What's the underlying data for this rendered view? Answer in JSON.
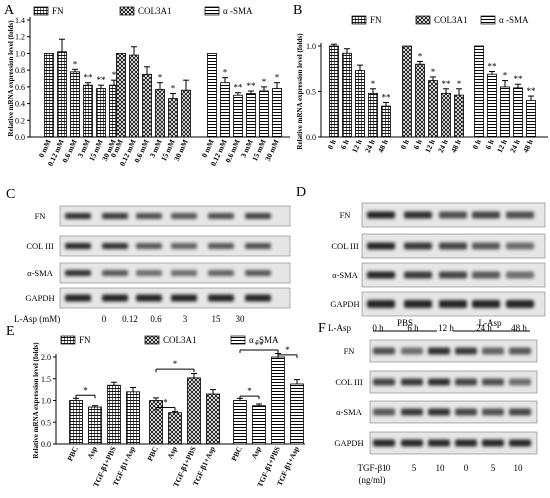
{
  "panel_labels": {
    "a": "A",
    "b": "B",
    "c": "C",
    "d": "D",
    "e": "E",
    "f": "F"
  },
  "chart_data": [
    {
      "panel": "A",
      "type": "bar",
      "ylabel": "Relative mRNA expression level (folds)",
      "ylim": [
        0,
        1.4
      ],
      "yticks": [
        "0.0",
        "0.2",
        "0.4",
        "0.6",
        "0.8",
        "1.0",
        "1.2",
        "1.4"
      ],
      "legend": [
        "FN",
        "COL3A1",
        "α -SMA"
      ],
      "groups": [
        {
          "series": "FN",
          "categories": [
            "0 mM",
            "0.12 mM",
            "0.6 mM",
            "3 mM",
            "15 mM",
            "30 mM"
          ],
          "values": [
            1.0,
            1.02,
            0.78,
            0.62,
            0.58,
            0.62
          ],
          "errors": [
            0,
            0.15,
            0.03,
            0.03,
            0.04,
            0.06
          ],
          "sig": [
            "",
            "",
            "*",
            "**",
            "**",
            "*"
          ]
        },
        {
          "series": "COL3A1",
          "categories": [
            "0 mM",
            "0.12 mM",
            "0.6 mM",
            "3 mM",
            "15 mM",
            "30 mM"
          ],
          "values": [
            1.0,
            0.98,
            0.75,
            0.57,
            0.46,
            0.56
          ],
          "errors": [
            0,
            0.1,
            0.09,
            0.08,
            0.06,
            0.12
          ],
          "sig": [
            "",
            "",
            "",
            "*",
            "*",
            ""
          ]
        },
        {
          "series": "α -SMA",
          "categories": [
            "0 mM",
            "0.12 mM",
            "0.6 mM",
            "3 mM",
            "15 mM",
            "30 mM"
          ],
          "values": [
            1.0,
            0.65,
            0.5,
            0.52,
            0.55,
            0.58
          ],
          "errors": [
            0,
            0.06,
            0.03,
            0.03,
            0.05,
            0.07
          ],
          "sig": [
            "",
            "*",
            "**",
            "**",
            "*",
            "*"
          ]
        }
      ]
    },
    {
      "panel": "B",
      "type": "bar",
      "ylabel": "Relative mRNA expression level (folds)",
      "ylim": [
        0,
        1.0
      ],
      "yticks": [
        "0.0",
        "0.5",
        "1.0"
      ],
      "legend": [
        "FN",
        "COL3A1",
        "α -SMA"
      ],
      "groups": [
        {
          "series": "FN",
          "categories": [
            "0 h",
            "6 h",
            "12 h",
            "24 h",
            "48 h"
          ],
          "values": [
            1.0,
            0.92,
            0.73,
            0.48,
            0.34
          ],
          "errors": [
            0.02,
            0.05,
            0.06,
            0.05,
            0.04
          ],
          "sig": [
            "",
            "",
            "",
            "*",
            "**"
          ]
        },
        {
          "series": "COL3A1",
          "categories": [
            "0 h",
            "6 h",
            "12 h",
            "24 h",
            "48 h"
          ],
          "values": [
            1.0,
            0.8,
            0.62,
            0.48,
            0.46
          ],
          "errors": [
            0,
            0.03,
            0.04,
            0.05,
            0.07
          ],
          "sig": [
            "",
            "*",
            "*",
            "**",
            "*"
          ]
        },
        {
          "series": "α -SMA",
          "categories": [
            "0 h",
            "6 h",
            "12 h",
            "24 h",
            "48 h"
          ],
          "values": [
            1.0,
            0.69,
            0.55,
            0.54,
            0.4
          ],
          "errors": [
            0,
            0.03,
            0.07,
            0.04,
            0.05
          ],
          "sig": [
            "",
            "**",
            "*",
            "**",
            "**"
          ]
        }
      ]
    },
    {
      "panel": "E",
      "type": "bar",
      "ylabel": "Relative mRNA expression level (folds)",
      "ylim": [
        0,
        2.0
      ],
      "yticks": [
        "0.0",
        "0.5",
        "1.0",
        "1.5",
        "2.0"
      ],
      "legend": [
        "FN",
        "COL3A1",
        "α -SMA"
      ],
      "groups": [
        {
          "series": "FN",
          "categories": [
            "PBC",
            "Asp",
            "TGF-β1+PBS",
            "TGF-β1+Asp"
          ],
          "values": [
            1.0,
            0.85,
            1.35,
            1.2
          ],
          "errors": [
            0.05,
            0.03,
            0.07,
            0.1
          ]
        },
        {
          "series": "COL3A1",
          "categories": [
            "PBC",
            "Asp",
            "TGF-β1+PBS",
            "TGF-β1+Asp"
          ],
          "values": [
            1.0,
            0.72,
            1.52,
            1.15
          ],
          "errors": [
            0.06,
            0.03,
            0.1,
            0.1
          ]
        },
        {
          "series": "α -SMA",
          "categories": [
            "PBC",
            "Asp",
            "TGF-β1+PBS",
            "TGF-β1+Asp"
          ],
          "values": [
            1.0,
            0.88,
            2.0,
            1.38
          ],
          "errors": [
            0.05,
            0.04,
            0.08,
            0.1
          ]
        }
      ],
      "sig_labels": [
        "*",
        "*",
        "*",
        "*",
        "**",
        "*"
      ]
    }
  ],
  "blots": {
    "c": {
      "rows": [
        "FN",
        "COL III",
        "α-SMA",
        "GAPDH"
      ],
      "xlabel": "L-Asp (mM)",
      "lanes": [
        "0",
        "0.12",
        "0.6",
        "3",
        "15",
        "30"
      ]
    },
    "d": {
      "rows": [
        "FN",
        "COL III",
        "α-SMA",
        "GAPDH"
      ],
      "xlabel": "L-Asp",
      "lanes": [
        "0 h",
        "6 h",
        "12 h",
        "24 h",
        "48 h"
      ]
    },
    "f": {
      "rows": [
        "FN",
        "COL III",
        "α-SMA",
        "GAPDH"
      ],
      "groups": [
        "PBS",
        "L-Asp"
      ],
      "xlabel_line1": "TGF-β1",
      "xlabel_line2": "(ng/ml)",
      "lanes": [
        "0",
        "5",
        "10",
        "0",
        "5",
        "10"
      ]
    }
  },
  "colors": {
    "bar_fill": "#ffffff",
    "ink": "#000000",
    "blot_bg": "#e6e6e6",
    "band": "#2b2b2b"
  }
}
